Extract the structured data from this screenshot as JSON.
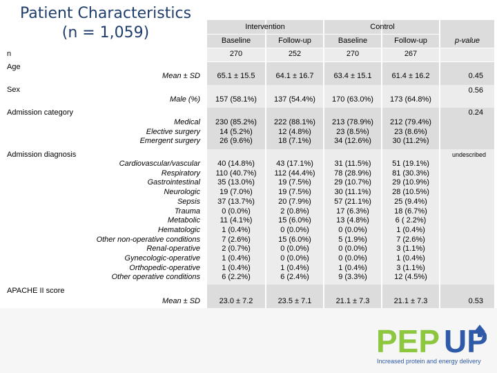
{
  "title": {
    "line1": "Patient Characteristics",
    "line2": "(n = 1,059)"
  },
  "header": {
    "intervention": "Intervention",
    "control": "Control",
    "baseline": "Baseline",
    "followup": "Follow-up",
    "pvalue": "p-value"
  },
  "n_row": {
    "label": "n",
    "values": [
      "270",
      "252",
      "270",
      "267"
    ]
  },
  "age": {
    "label": "Age",
    "sublabel": "Mean ± SD",
    "values": [
      "65.1 ± 15.5",
      "64.1 ± 16.7",
      "63.4 ± 15.1",
      "61.4 ± 16.2"
    ],
    "p": "0.45"
  },
  "sex": {
    "label": "Sex",
    "sublabel": "Male (%)",
    "values": [
      "157 (58.1%)",
      "137 (54.4%)",
      "170 (63.0%)",
      "173 (64.8%)"
    ],
    "p": "0.56"
  },
  "admission_category": {
    "label": "Admission category",
    "p": "0.24",
    "sublabels": "Medical\nElective surgery\nEmergent surgery",
    "cols": [
      "230 (85.2%)\n14 (5.2%)\n26 (9.6%)",
      "222 (88.1%)\n12 (4.8%)\n18 (7.1%)",
      "213 (78.9%)\n23 (8.5%)\n34 (12.6%)",
      "212 (79.4%)\n23 (8.6%)\n30 (11.2%)"
    ]
  },
  "admission_diagnosis": {
    "label": "Admission diagnosis",
    "p": "undescribed",
    "sublabels": "Cardiovascular/vascular\nRespiratory\nGastrointestinal\nNeurologic\nSepsis\nTrauma\nMetabolic\nHematologic\nOther non-operative conditions\nRenal-operative\nGynecologic-operative\nOrthopedic-operative\nOther operative conditions",
    "cols": [
      "40 (14.8%)\n110 (40.7%)\n35 (13.0%)\n19 (7.0%)\n37 (13.7%)\n0 (0.0%)\n11 (4.1%)\n1 (0.4%)\n7 (2.6%)\n2 (0.7%)\n1 (0.4%)\n1 (0.4%)\n6 (2.2%)",
      "43 (17.1%)\n112 (44.4%)\n19 (7.5%)\n19 (7.5%)\n20 (7.9%)\n2 (0.8%)\n15 (6.0%)\n0 (0.0%)\n15 (6.0%)\n0 (0.0%)\n0 (0.0%)\n1 (0.4%)\n6 (2.4%)",
      "31 (11.5%)\n78 (28.9%)\n29 (10.7%)\n30 (11.1%)\n57 (21.1%)\n17 (6.3%)\n13 (4.8%)\n0 (0.0%)\n5 (1.9%)\n0 (0.0%)\n0 (0.0%)\n1 (0.4%)\n9 (3.3%)",
      "51 (19.1%)\n81 (30.3%)\n29 (10.9%)\n28 (10.5%)\n25 (9.4%)\n18 (6.7%)\n6 ( 2.2%)\n1 (0.4%)\n7 (2.6%)\n3 (1.1%)\n1 (0.4%)\n3 (1.1%)\n12 (4.5%)"
    ]
  },
  "apache": {
    "label": "APACHE II score",
    "sublabel": "Mean ± SD",
    "values": [
      "23.0 ± 7.2",
      "23.5 ± 7.1",
      "21.1 ± 7.3",
      "21.1 ± 7.3"
    ],
    "p": "0.53"
  },
  "logo": {
    "text": "PEPUP",
    "tagline": "Increased protein and energy delivery",
    "colors": {
      "green": "#8dc63f",
      "blue": "#2e5aa8"
    }
  }
}
